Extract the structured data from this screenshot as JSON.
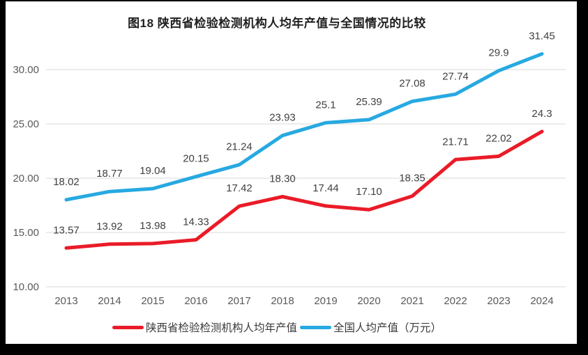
{
  "chart_data": {
    "type": "line",
    "title": "图18 陕西省检验检测机构人均年产值与全国情况的比较",
    "categories": [
      "2013",
      "2014",
      "2015",
      "2016",
      "2017",
      "2018",
      "2019",
      "2020",
      "2021",
      "2022",
      "2023",
      "2024"
    ],
    "series": [
      {
        "name": "陕西省检验检测机构人均年产值",
        "color": "#ea1b28",
        "values": [
          13.57,
          13.92,
          13.98,
          14.33,
          17.42,
          18.3,
          17.44,
          17.1,
          18.35,
          21.71,
          22.02,
          24.3
        ],
        "labels": [
          "13.57",
          "13.92",
          "13.98",
          "14.33",
          "17.42",
          "18.30",
          "17.44",
          "17.10",
          "18.35",
          "21.71",
          "22.02",
          "24.3"
        ]
      },
      {
        "name": "全国人均产值（万元）",
        "color": "#27a9e1",
        "values": [
          18.02,
          18.77,
          19.04,
          20.15,
          21.24,
          23.93,
          25.1,
          25.39,
          27.08,
          27.74,
          29.9,
          31.45
        ],
        "labels": [
          "18.02",
          "18.77",
          "19.04",
          "20.15",
          "21.24",
          "23.93",
          "25.1",
          "25.39",
          "27.08",
          "27.74",
          "29.9",
          "31.45"
        ]
      }
    ],
    "xlabel": "",
    "ylabel": "",
    "ylim": [
      10,
      32.5
    ],
    "yticks": [
      "10.00",
      "15.00",
      "20.00",
      "25.00",
      "30.00"
    ],
    "grid": true,
    "legend_position": "bottom",
    "colors": {
      "gridline": "#d9d9d9",
      "tick_text": "#595959",
      "data_label_text": "#404040",
      "title_text": "#1f1f1f",
      "frame": "#000000",
      "background": "#ffffff"
    }
  }
}
